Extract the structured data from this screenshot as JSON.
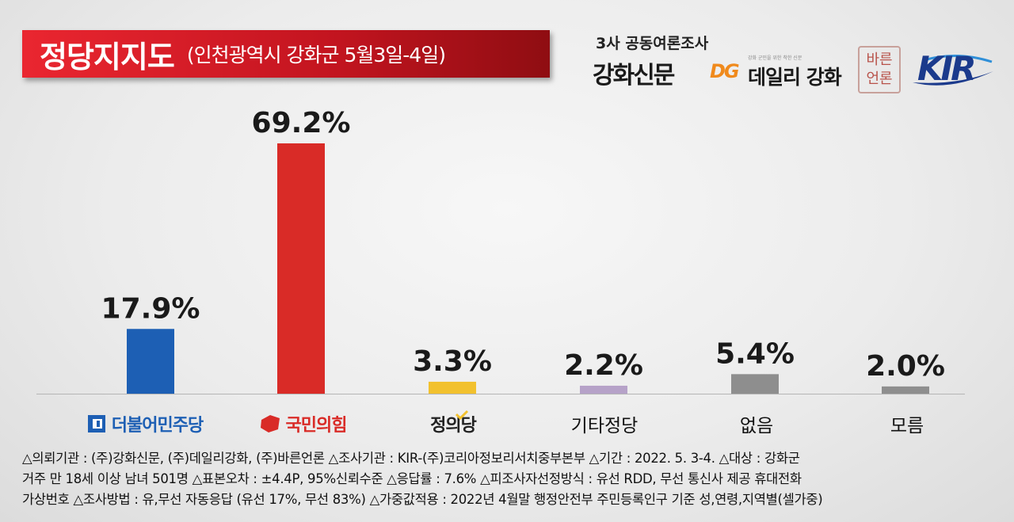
{
  "header": {
    "title": "정당지지도",
    "subtitle": "(인천광역시 강화군 5월3일-4일)",
    "survey_label": "3사 공동여론조사",
    "logos": {
      "ganghwa": "강화신문",
      "dg_mark": "DG",
      "dg_small": "강화 군민을 위한 착한 신문",
      "daily": "데일리 강화",
      "bareun_top": "바른",
      "bareun_bottom": "언론",
      "kir": "KIR"
    }
  },
  "colors": {
    "title_red": "#d91f26",
    "democratic": "#1d5fb4",
    "ppp": "#d92b27",
    "justice": "#f2c12e",
    "other": "#b6a2c8",
    "none": "#8e8e8e",
    "unknown": "#8e8e8e"
  },
  "chart_data": {
    "type": "bar",
    "categories": [
      "더불어민주당",
      "국민의힘",
      "정의당",
      "기타정당",
      "없음",
      "모름"
    ],
    "values": [
      17.9,
      69.2,
      3.3,
      2.2,
      5.4,
      2.0
    ],
    "value_labels": [
      "17.9%",
      "69.2%",
      "3.3%",
      "2.2%",
      "5.4%",
      "2.0%"
    ],
    "bar_colors": [
      "#1d5fb4",
      "#d92b27",
      "#f2c12e",
      "#b6a2c8",
      "#8e8e8e",
      "#8e8e8e"
    ],
    "ylim": [
      0,
      69.2
    ],
    "title": "정당지지도",
    "subtitle": "(인천광역시 강화군 5월3일-4일)",
    "xlabel": "",
    "ylabel": "",
    "grid": false,
    "legend": "none"
  },
  "footnotes": [
    "△의뢰기관 : (주)강화신문, (주)데일리강화, (주)바른언론   △조사기관 : KIR-(주)코리아정보리서치중부본부   △기간 : 2022. 5. 3-4.   △대상 : 강화군",
    "거주 만 18세 이상 남녀 501명   △표본오차 : ±4.4P, 95%신뢰수준  △응답률 : 7.6%  △피조사자선정방식 : 유선 RDD, 무선 통신사 제공 휴대전화",
    "가상번호 △조사방법 : 유,무선 자동응답 (유선 17%, 무선 83%)  △가중값적용 : 2022년 4월말 행정안전부 주민등록인구 기준 성,연령,지역별(셀가중)"
  ]
}
